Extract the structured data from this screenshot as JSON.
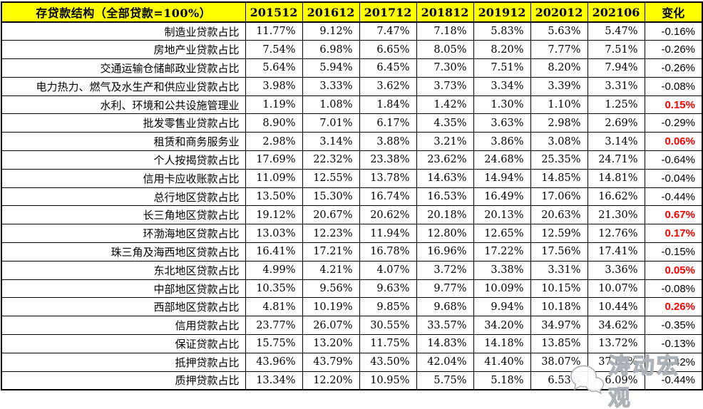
{
  "colors": {
    "header_bg": "#FFFF00",
    "border": "#000000",
    "text": "#000000",
    "positive_change": "#FF0000"
  },
  "chart_data": {
    "type": "table",
    "title": "存贷款结构（全部贷款=100%）",
    "columns": [
      "201512",
      "201612",
      "201712",
      "201812",
      "201912",
      "202012",
      "202106",
      "变化"
    ],
    "rows": [
      {
        "label": "制造业贷款占比",
        "values": [
          "11.77%",
          "9.12%",
          "7.47%",
          "7.18%",
          "5.83%",
          "5.63%",
          "5.47%"
        ],
        "change": "-0.16%"
      },
      {
        "label": "房地产业贷款占比",
        "values": [
          "7.54%",
          "6.98%",
          "6.65%",
          "8.05%",
          "8.20%",
          "7.77%",
          "7.51%"
        ],
        "change": "-0.26%"
      },
      {
        "label": "交通运输仓储邮政业贷款占比",
        "values": [
          "5.64%",
          "5.94%",
          "6.45%",
          "7.30%",
          "7.51%",
          "8.20%",
          "7.94%"
        ],
        "change": "-0.26%"
      },
      {
        "label": "电力热力、燃气及水生产和供应业贷款占比",
        "values": [
          "3.98%",
          "3.33%",
          "3.62%",
          "3.73%",
          "3.34%",
          "3.39%",
          "3.31%"
        ],
        "change": "-0.08%"
      },
      {
        "label": "水利、环境和公共设施管理业",
        "values": [
          "1.19%",
          "1.08%",
          "1.84%",
          "1.42%",
          "1.30%",
          "1.10%",
          "1.25%"
        ],
        "change": "0.15%"
      },
      {
        "label": "批发零售业贷款占比",
        "values": [
          "8.90%",
          "7.01%",
          "6.17%",
          "4.35%",
          "3.63%",
          "2.98%",
          "2.69%"
        ],
        "change": "-0.29%"
      },
      {
        "label": "租赁和商务服务业",
        "values": [
          "2.98%",
          "3.14%",
          "3.88%",
          "3.21%",
          "3.86%",
          "3.08%",
          "3.14%"
        ],
        "change": "0.06%"
      },
      {
        "label": "个人按揭贷款占比",
        "values": [
          "17.69%",
          "22.32%",
          "23.38%",
          "23.62%",
          "24.68%",
          "25.35%",
          "24.71%"
        ],
        "change": "-0.64%"
      },
      {
        "label": "信用卡应收账款占比",
        "values": [
          "11.09%",
          "12.55%",
          "13.78%",
          "14.63%",
          "14.94%",
          "14.85%",
          "14.81%"
        ],
        "change": "-0.04%"
      },
      {
        "label": "总行地区贷款占比",
        "values": [
          "13.50%",
          "15.30%",
          "16.74%",
          "16.53%",
          "16.49%",
          "17.06%",
          "16.62%"
        ],
        "change": "-0.44%"
      },
      {
        "label": "长三角地区贷款占比",
        "values": [
          "19.12%",
          "20.67%",
          "20.62%",
          "20.18%",
          "20.13%",
          "20.63%",
          "21.30%"
        ],
        "change": "0.67%"
      },
      {
        "label": "环渤海地区贷款占比",
        "values": [
          "13.03%",
          "12.23%",
          "11.94%",
          "12.80%",
          "12.65%",
          "12.59%",
          "12.76%"
        ],
        "change": "0.17%"
      },
      {
        "label": "珠三角及海西地区贷款占比",
        "values": [
          "16.41%",
          "17.21%",
          "16.78%",
          "16.96%",
          "17.22%",
          "17.56%",
          "17.41%"
        ],
        "change": "-0.15%"
      },
      {
        "label": "东北地区贷款占比",
        "values": [
          "4.99%",
          "4.21%",
          "4.07%",
          "3.72%",
          "3.38%",
          "3.31%",
          "3.36%"
        ],
        "change": "0.05%"
      },
      {
        "label": "中部地区贷款占比",
        "values": [
          "10.35%",
          "9.56%",
          "9.63%",
          "9.77%",
          "10.09%",
          "10.15%",
          "10.07%"
        ],
        "change": "-0.08%"
      },
      {
        "label": "西部地区贷款占比",
        "values": [
          "4.81%",
          "10.19%",
          "9.85%",
          "9.68%",
          "9.94%",
          "10.18%",
          "10.44%"
        ],
        "change": "0.26%"
      },
      {
        "label": "信用贷款占比",
        "values": [
          "23.77%",
          "26.07%",
          "30.55%",
          "33.57%",
          "34.20%",
          "34.97%",
          "34.62%"
        ],
        "change": "-0.35%"
      },
      {
        "label": "保证贷款占比",
        "values": [
          "15.75%",
          "13.20%",
          "11.75%",
          "14.83%",
          "14.18%",
          "13.85%",
          "13.72%"
        ],
        "change": "-0.13%"
      },
      {
        "label": "抵押贷款占比",
        "values": [
          "43.96%",
          "43.79%",
          "43.50%",
          "42.04%",
          "41.40%",
          "38.07%",
          "37.65%"
        ],
        "change": "-0.42%"
      },
      {
        "label": "质押贷款占比",
        "values": [
          "13.34%",
          "12.20%",
          "10.95%",
          "5.75%",
          "5.18%",
          "6.53%",
          "6.09%"
        ],
        "change": "-0.44%"
      }
    ]
  },
  "watermark": {
    "text": "涛动宏观"
  }
}
